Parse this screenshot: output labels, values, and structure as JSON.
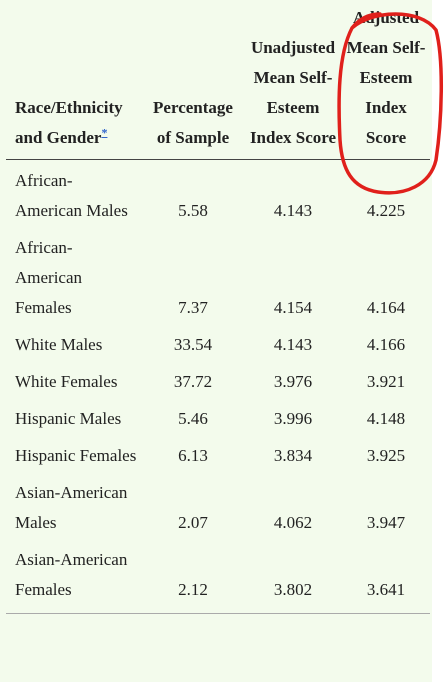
{
  "table": {
    "header": [
      {
        "text": "Race/Ethnicity and Gender",
        "footnote": "*"
      },
      "Percentage of Sample",
      "Unadjusted Mean Self-Esteem Index Score",
      "Adjusted Mean Self-Esteem Index Score"
    ],
    "rows": [
      [
        "African-American Males",
        "5.58",
        "4.143",
        "4.225"
      ],
      [
        "African-American Females",
        "7.37",
        "4.154",
        "4.164"
      ],
      [
        "White Males",
        "33.54",
        "4.143",
        "4.166"
      ],
      [
        "White Females",
        "37.72",
        "3.976",
        "3.921"
      ],
      [
        "Hispanic Males",
        "5.46",
        "3.996",
        "4.148"
      ],
      [
        "Hispanic Females",
        "6.13",
        "3.834",
        "3.925"
      ],
      [
        "Asian-American Males",
        "2.07",
        "4.062",
        "3.947"
      ],
      [
        "Asian-American Females",
        "2.12",
        "3.802",
        "3.641"
      ]
    ]
  }
}
